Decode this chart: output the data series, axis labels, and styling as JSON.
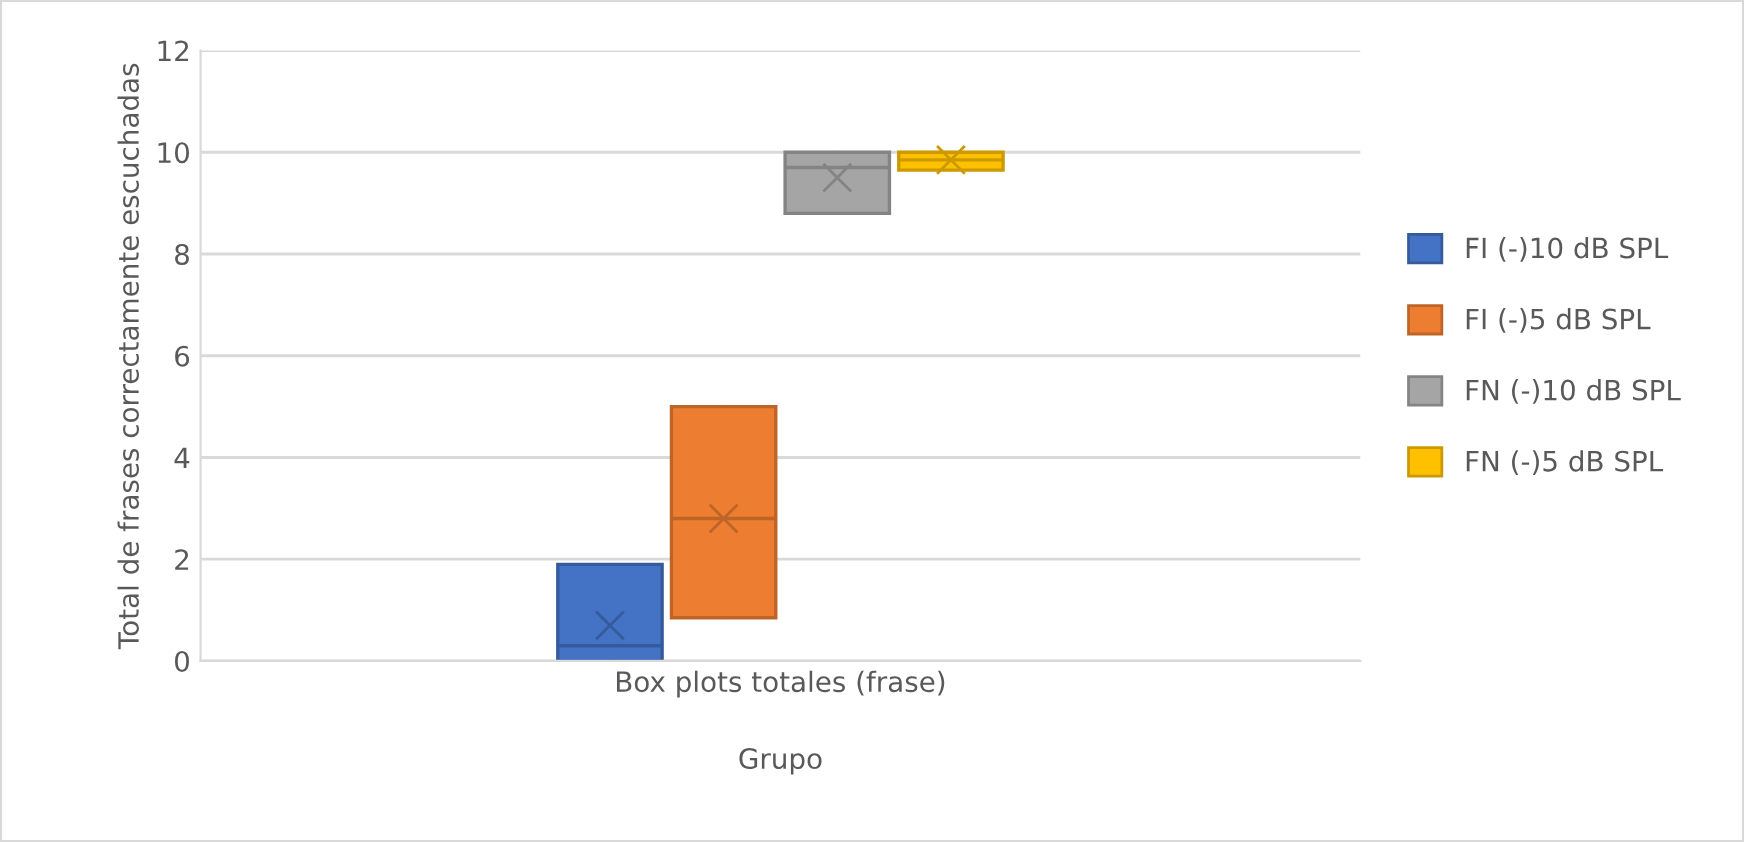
{
  "chart_data": {
    "type": "box",
    "xlabel": "Grupo",
    "ylabel": "Total de frases correctamente escuchadas",
    "categories": [
      "Box plots totales (frase)"
    ],
    "series": [
      {
        "name": "FI (-)10 dB SPL",
        "color": "#4472c4",
        "boxes": [
          {
            "low": 0,
            "q1": 0,
            "median": 0.3,
            "q3": 1.9,
            "high": 1.9,
            "mean": 0.7
          }
        ]
      },
      {
        "name": "FI (-)5 dB SPL",
        "color": "#ed7d31",
        "boxes": [
          {
            "low": 0.85,
            "q1": 0.85,
            "median": 2.8,
            "q3": 5.0,
            "high": 5.0,
            "mean": 2.8
          }
        ]
      },
      {
        "name": "FN (-)10 dB SPL",
        "color": "#a5a5a5",
        "boxes": [
          {
            "low": 8.8,
            "q1": 8.8,
            "median": 9.7,
            "q3": 10,
            "high": 10,
            "mean": 9.5
          }
        ]
      },
      {
        "name": "FN (-)5 dB SPL",
        "color": "#ffc000",
        "boxes": [
          {
            "low": 9.65,
            "q1": 9.65,
            "median": 9.85,
            "q3": 10,
            "high": 10,
            "mean": 9.85
          }
        ]
      }
    ],
    "ylim": [
      0,
      12
    ],
    "yticks": [
      0,
      2,
      4,
      6,
      8,
      10,
      12
    ],
    "grid": "y",
    "legend": "right"
  }
}
